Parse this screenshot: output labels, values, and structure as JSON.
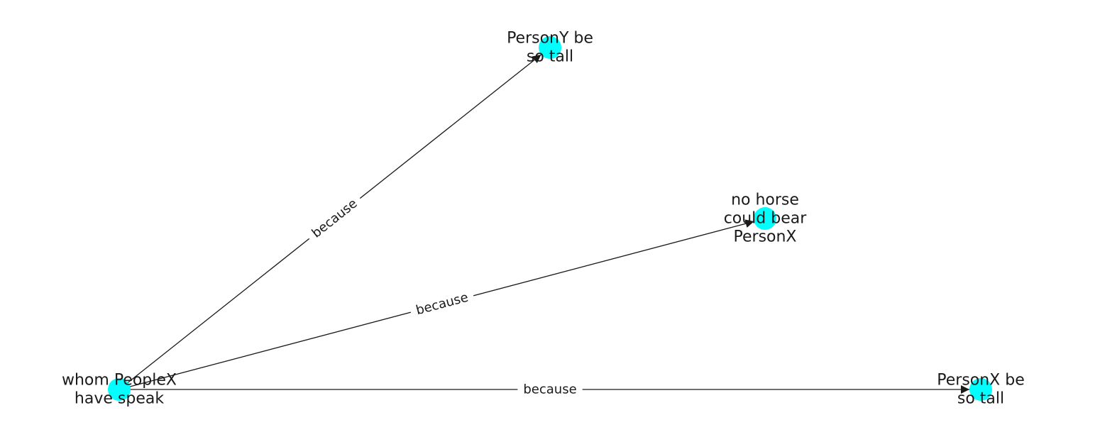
{
  "colors": {
    "node_fill": "#00FFFF",
    "edge_stroke": "#1a1a1a",
    "text": "#1a1a1a",
    "background": "#ffffff"
  },
  "graph": {
    "nodes": [
      {
        "id": "whom",
        "label_lines": [
          "whom PeopleX",
          "have speak"
        ]
      },
      {
        "id": "persony",
        "label_lines": [
          "PersonY be",
          "so tall"
        ]
      },
      {
        "id": "horse",
        "label_lines": [
          "no horse",
          "could bear",
          "PersonX"
        ]
      },
      {
        "id": "personx",
        "label_lines": [
          "PersonX be",
          "so tall"
        ]
      }
    ],
    "edges": [
      {
        "id": "whom-persony",
        "source": "whom",
        "target": "persony",
        "label": "because"
      },
      {
        "id": "whom-horse",
        "source": "whom",
        "target": "horse",
        "label": "because"
      },
      {
        "id": "whom-personx",
        "source": "whom",
        "target": "personx",
        "label": "because"
      }
    ]
  }
}
